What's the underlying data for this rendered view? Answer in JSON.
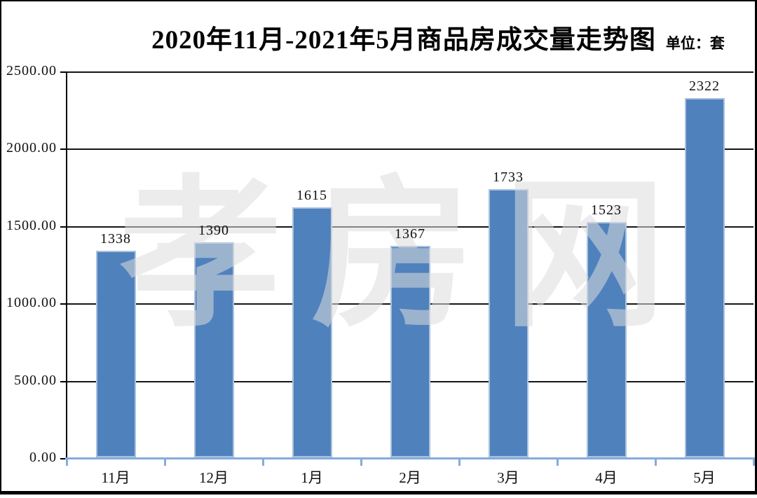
{
  "chart_data": {
    "type": "bar",
    "title": "2020年11月-2021年5月商品房成交量走势图",
    "unit_label": "单位：套",
    "categories": [
      "11月",
      "12月",
      "1月",
      "2月",
      "3月",
      "4月",
      "5月"
    ],
    "values": [
      1338,
      1390,
      1615,
      1367,
      1733,
      1523,
      2322
    ],
    "y_ticks": [
      "2500.00",
      "2000.00",
      "1500.00",
      "1000.00",
      "500.00",
      "0.00"
    ],
    "ylim": [
      0,
      2500
    ],
    "grid": true,
    "legend": "none",
    "watermark": "孝房网",
    "colors": {
      "bar_fill": "#4F81BD",
      "bar_border": "#A9C2DE",
      "x_axis": "#85ACDB",
      "gridline": "#151515",
      "text": "#111111",
      "watermark": "#DDDDDD",
      "frame": "#000000"
    }
  }
}
